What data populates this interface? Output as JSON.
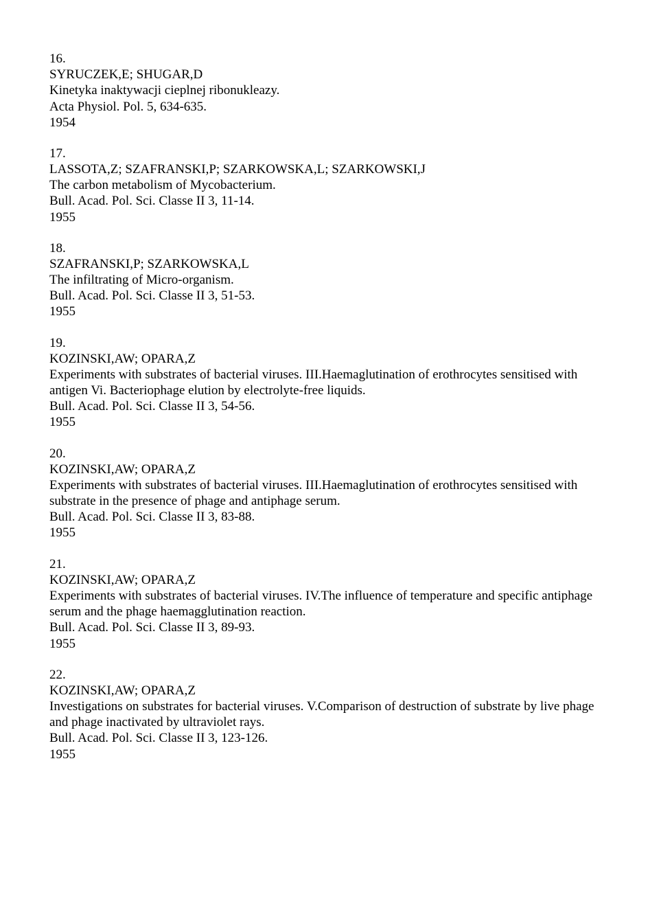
{
  "entries": [
    {
      "num": "16.",
      "authors": "SYRUCZEK,E; SHUGAR,D",
      "title": "Kinetyka inaktywacji cieplnej ribonukleazy.",
      "journal": "Acta Physiol. Pol. 5, 634-635.",
      "year": "1954"
    },
    {
      "num": "17.",
      "authors": "LASSOTA,Z; SZAFRANSKI,P; SZARKOWSKA,L; SZARKOWSKI,J",
      "title": "The carbon metabolism of Mycobacterium.",
      "journal": "Bull. Acad. Pol. Sci. Classe II 3, 11-14.",
      "year": "1955"
    },
    {
      "num": "18.",
      "authors": "SZAFRANSKI,P; SZARKOWSKA,L",
      "title": "The infiltrating of Micro-organism.",
      "journal": "Bull. Acad. Pol. Sci. Classe II 3, 51-53.",
      "year": "1955"
    },
    {
      "num": "19.",
      "authors": "KOZINSKI,AW; OPARA,Z",
      "title": "Experiments with substrates of bacterial viruses. III.Haemaglutination of erothrocytes sensitised with antigen Vi. Bacteriophage elution by electrolyte-free liquids.",
      "journal": "Bull. Acad. Pol. Sci. Classe II 3, 54-56.",
      "year": "1955"
    },
    {
      "num": "20.",
      "authors": "KOZINSKI,AW; OPARA,Z",
      "title": "Experiments with substrates of bacterial viruses. III.Haemaglutination of erothrocytes sensitised with substrate in the presence of phage and antiphage serum.",
      "journal": "Bull. Acad. Pol. Sci. Classe II 3, 83-88.",
      "year": "1955"
    },
    {
      "num": "21.",
      "authors": "KOZINSKI,AW; OPARA,Z",
      "title": "Experiments with substrates of bacterial viruses. IV.The influence of temperature and specific antiphage serum and the phage haemagglutination reaction.",
      "journal": "Bull. Acad. Pol. Sci. Classe II 3, 89-93.",
      "year": "1955"
    },
    {
      "num": "22.",
      "authors": "KOZINSKI,AW; OPARA,Z",
      "title": "Investigations on substrates for bacterial viruses. V.Comparison of destruction of substrate by live phage and phage inactivated by ultraviolet rays.",
      "journal": "Bull. Acad. Pol. Sci. Classe II 3, 123-126.",
      "year": "1955"
    }
  ]
}
